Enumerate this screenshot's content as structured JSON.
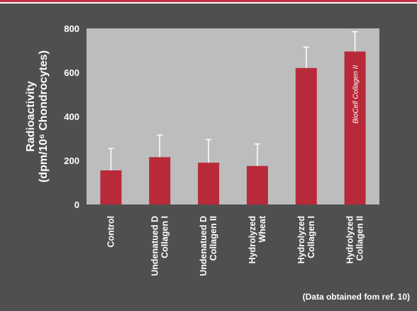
{
  "colors": {
    "background": "#4f4f4f",
    "plot_area": "#bdbdbd",
    "bar": "#b82a3a",
    "error_bar": "#ffffff",
    "accent_line": "#c23140"
  },
  "chart_data": {
    "type": "bar",
    "categories": [
      [
        "Control"
      ],
      [
        "Undenatued D",
        "Collagen I"
      ],
      [
        "Undenatued D",
        "Collagen II"
      ],
      [
        "Hydrolyzed",
        "Wheat"
      ],
      [
        "Hydrolyzed",
        "Collagen I"
      ],
      [
        "Hydrolyzed",
        "Collagen II"
      ]
    ],
    "values": [
      155,
      215,
      190,
      175,
      620,
      695
    ],
    "errors": [
      100,
      100,
      105,
      100,
      95,
      90
    ],
    "ylabel_lines": [
      "Radioactivity",
      "(dpm/10⁶ Chondrocytes)"
    ],
    "yticks": [
      0,
      200,
      400,
      600,
      800
    ],
    "ylim": [
      0,
      800
    ],
    "grid": false,
    "note": "(Data obtained fom ref. 10)",
    "bar_logo": {
      "bar_index": 5,
      "icon": "bioceil-collagen-logo-icon",
      "text": "BioCell Collagen II"
    }
  }
}
